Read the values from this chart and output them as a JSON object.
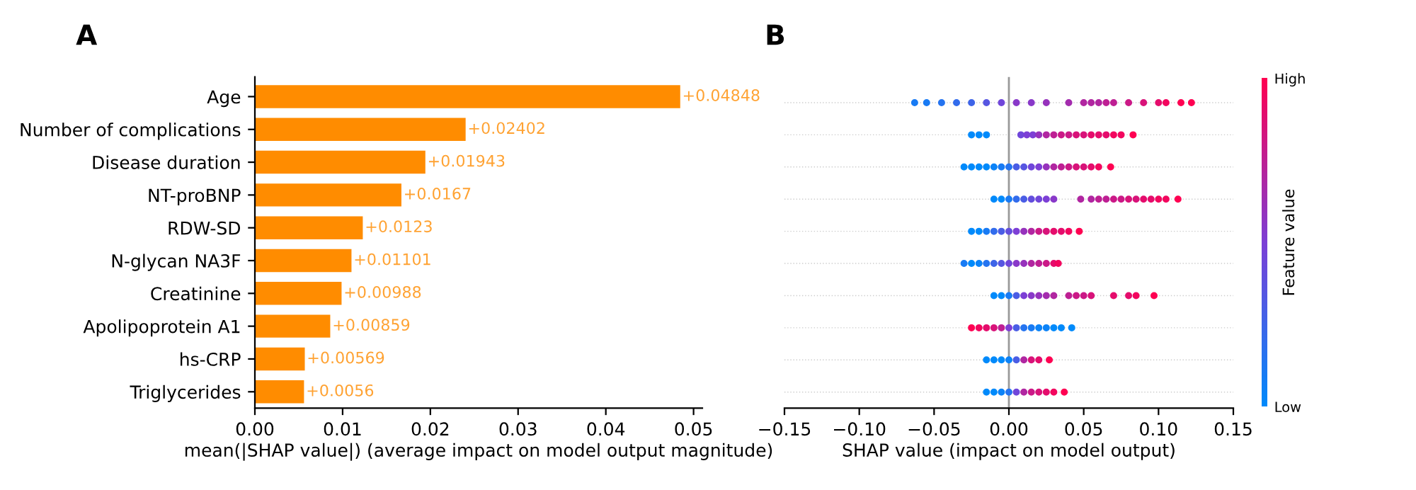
{
  "chart_data": [
    {
      "type": "bar",
      "title": "A",
      "orientation": "horizontal",
      "xlabel": "mean(|SHAP value|) (average impact on model output magnitude)",
      "categories": [
        "Age",
        "Number of complications",
        "Disease duration",
        "NT-proBNP",
        "RDW-SD",
        "N-glycan NA3F",
        "Creatinine",
        "Apolipoprotein A1",
        "hs-CRP",
        "Triglycerides"
      ],
      "values": [
        0.04848,
        0.02402,
        0.01943,
        0.0167,
        0.0123,
        0.01101,
        0.00988,
        0.00859,
        0.00569,
        0.0056
      ],
      "value_labels": [
        "+0.04848",
        "+0.02402",
        "+0.01943",
        "+0.0167",
        "+0.0123",
        "+0.01101",
        "+0.00988",
        "+0.00859",
        "+0.00569",
        "+0.0056"
      ],
      "color": "#ff8c00",
      "xlim": [
        0,
        0.051
      ],
      "xticks": [
        {
          "value": 0,
          "label": "0.00"
        },
        {
          "value": 0.01,
          "label": "0.01"
        },
        {
          "value": 0.02,
          "label": "0.02"
        },
        {
          "value": 0.03,
          "label": "0.03"
        },
        {
          "value": 0.04,
          "label": "0.04"
        },
        {
          "value": 0.05,
          "label": "0.05"
        }
      ],
      "grid": false,
      "legend": false
    },
    {
      "type": "scatter",
      "title": "B",
      "orientation": "horizontal",
      "xlabel": "SHAP value (impact on model output)",
      "clabel": "Feature value",
      "categories": [
        null,
        null,
        null,
        null,
        null,
        null,
        null,
        null,
        null,
        null
      ],
      "xlim": [
        -0.15,
        0.15
      ],
      "xticks": [
        {
          "value": -0.15,
          "label": "−0.15"
        },
        {
          "value": -0.1,
          "label": "−0.10"
        },
        {
          "value": -0.05,
          "label": "−0.05"
        },
        {
          "value": 0,
          "label": "0.00"
        },
        {
          "value": 0.05,
          "label": "0.05"
        },
        {
          "value": 0.1,
          "label": "0.10"
        },
        {
          "value": 0.15,
          "label": "0.15"
        }
      ],
      "clim": [
        0,
        1
      ],
      "cticks": [
        {
          "value": 0,
          "label": "Low"
        },
        {
          "value": 1,
          "label": "High"
        }
      ],
      "grid": "y",
      "legend": false,
      "ref_lines": [
        {
          "axis": "x",
          "value": 0,
          "label": null,
          "color": "#999999"
        }
      ],
      "series": [
        {
          "values": [
            -0.063,
            -0.025,
            -0.03,
            -0.01,
            -0.025,
            -0.03,
            -0.01,
            -0.025,
            -0.015,
            -0.015
          ],
          "cvalues": [
            0.1,
            0,
            0,
            0,
            0,
            0.1,
            0,
            1,
            0,
            0
          ],
          "colors": [
            "#197bf4",
            "#008afb",
            "#008afb",
            "#008afb",
            "#008afb",
            "#197bf4",
            "#008afb",
            "#ff0052",
            "#008afb",
            "#008afb"
          ]
        },
        {
          "values": [
            -0.055,
            -0.02,
            -0.025,
            -0.005,
            -0.02,
            -0.025,
            -0.005,
            -0.02,
            -0.01,
            -0.01
          ],
          "cvalues": [
            0.1,
            0,
            0,
            0,
            0,
            0,
            0,
            0.95,
            0,
            0
          ],
          "colors": [
            "#197bf4",
            "#008afb",
            "#008afb",
            "#008afb",
            "#008afb",
            "#008afb",
            "#008afb",
            "#f2065f",
            "#008afb",
            "#008afb"
          ]
        },
        {
          "values": [
            -0.045,
            -0.015,
            -0.02,
            0,
            -0.015,
            -0.02,
            0,
            -0.015,
            -0.005,
            -0.005
          ],
          "cvalues": [
            0.15,
            0,
            0,
            0.1,
            0.1,
            0.05,
            0.1,
            0.9,
            0,
            0.05
          ],
          "colors": [
            "#2574f0",
            "#008afb",
            "#008afb",
            "#197bf4",
            "#197bf4",
            "#0c83f7",
            "#197bf4",
            "#e50d6c",
            "#008afb",
            "#0c83f7"
          ]
        },
        {
          "values": [
            -0.035,
            0.008,
            -0.015,
            0.005,
            -0.01,
            -0.015,
            0.005,
            -0.01,
            0,
            0
          ],
          "cvalues": [
            0.2,
            0.45,
            0,
            0.2,
            0.2,
            0.15,
            0.3,
            0.85,
            0.05,
            0.15
          ],
          "colors": [
            "#326cec",
            "#7047da",
            "#008afb",
            "#326cec",
            "#326cec",
            "#2574f0",
            "#4a5de5",
            "#d8137a",
            "#0c83f7",
            "#2574f0"
          ]
        },
        {
          "values": [
            -0.025,
            0.012,
            -0.01,
            0.01,
            -0.005,
            -0.01,
            0.01,
            -0.005,
            0.005,
            0.005
          ],
          "cvalues": [
            0.25,
            0.5,
            0.05,
            0.3,
            0.3,
            0.25,
            0.5,
            0.75,
            0.3,
            0.45
          ],
          "colors": [
            "#3e64e8",
            "#7c3fd6",
            "#0c83f7",
            "#4a5de5",
            "#4a5de5",
            "#3e64e8",
            "#7c3fd6",
            "#be2094",
            "#4a5de5",
            "#7047da"
          ]
        },
        {
          "values": [
            -0.015,
            0.016,
            -0.005,
            0.015,
            0,
            -0.005,
            0.015,
            0,
            0.01,
            0.01
          ],
          "cvalues": [
            0.35,
            0.5,
            0.1,
            0.4,
            0.4,
            0.35,
            0.55,
            0.5,
            0.7,
            0.7
          ],
          "colors": [
            "#5756e1",
            "#7c3fd6",
            "#197bf4",
            "#634edd",
            "#634edd",
            "#5756e1",
            "#8939c9",
            "#7c3fd6",
            "#b026a1",
            "#b026a1"
          ]
        },
        {
          "values": [
            -0.005,
            0.02,
            0,
            0.02,
            0.005,
            0,
            0.02,
            0.005,
            0.015,
            0.015
          ],
          "cvalues": [
            0.45,
            0.6,
            0.15,
            0.45,
            0.5,
            0.45,
            0.6,
            0.3,
            0.85,
            0.8
          ],
          "colors": [
            "#7047da",
            "#9632bc",
            "#2574f0",
            "#7047da",
            "#7c3fd6",
            "#7047da",
            "#9632bc",
            "#4a5de5",
            "#d8137a",
            "#cb1987"
          ]
        },
        {
          "values": [
            0.005,
            0.025,
            0.005,
            0.025,
            0.01,
            0.005,
            0.025,
            0.01,
            0.02,
            0.02
          ],
          "cvalues": [
            0.55,
            0.7,
            0.3,
            0.5,
            0.6,
            0.55,
            0.65,
            0.15,
            0.9,
            0.85
          ],
          "colors": [
            "#8939c9",
            "#b026a1",
            "#4a5de5",
            "#7c3fd6",
            "#9632bc",
            "#8939c9",
            "#a32cae",
            "#2574f0",
            "#e50d6c",
            "#d8137a"
          ]
        },
        {
          "values": [
            0.015,
            0.03,
            0.01,
            0.03,
            0.015,
            0.01,
            0.03,
            0.015,
            0.027,
            0.025
          ],
          "cvalues": [
            0.55,
            0.75,
            0.35,
            0.55,
            0.7,
            0.6,
            0.7,
            0.1,
            1,
            0.9
          ],
          "colors": [
            "#8939c9",
            "#be2094",
            "#5756e1",
            "#8939c9",
            "#b026a1",
            "#9632bc",
            "#b026a1",
            "#197bf4",
            "#ff0052",
            "#e50d6c"
          ]
        },
        {
          "values": [
            0.025,
            0.035,
            0.015,
            0.048,
            0.02,
            0.015,
            0.04,
            0.02,
            null,
            0.03
          ],
          "cvalues": [
            0.6,
            0.8,
            0.45,
            0.7,
            0.8,
            0.7,
            0.75,
            0.05,
            null,
            0.95
          ],
          "colors": [
            "#9632bc",
            "#cb1987",
            "#7047da",
            "#b026a1",
            "#cb1987",
            "#b026a1",
            "#be2094",
            "#0c83f7",
            null,
            "#f2065f"
          ]
        },
        {
          "values": [
            0.04,
            0.04,
            null,
            0.055,
            0.025,
            0.02,
            0.045,
            0.025,
            null,
            0.037
          ],
          "cvalues": [
            0.65,
            0.8,
            null,
            0.7,
            0.85,
            0.75,
            0.8,
            0.05,
            null,
            1
          ],
          "colors": [
            "#a32cae",
            "#cb1987",
            null,
            "#b026a1",
            "#d8137a",
            "#be2094",
            "#cb1987",
            "#0c83f7",
            null,
            "#ff0052"
          ]
        },
        {
          "values": [
            0.05,
            0.045,
            0.02,
            0.06,
            0.03,
            0.025,
            0.05,
            0.03,
            null,
            null
          ],
          "cvalues": [
            0.7,
            0.85,
            0.5,
            0.75,
            0.9,
            0.8,
            0.8,
            0,
            null,
            null
          ],
          "colors": [
            "#b026a1",
            "#d8137a",
            "#7c3fd6",
            "#be2094",
            "#e50d6c",
            "#cb1987",
            "#cb1987",
            "#008afb",
            null,
            null
          ]
        },
        {
          "values": [
            0.055,
            0.05,
            0.025,
            0.065,
            0.035,
            0.03,
            0.055,
            0.035,
            null,
            null
          ],
          "cvalues": [
            0.7,
            0.85,
            0.6,
            0.75,
            0.9,
            0.9,
            0.85,
            0,
            null,
            null
          ],
          "colors": [
            "#b026a1",
            "#d8137a",
            "#9632bc",
            "#be2094",
            "#e50d6c",
            "#e50d6c",
            "#d8137a",
            "#008afb",
            null,
            null
          ]
        },
        {
          "values": [
            0.06,
            0.055,
            0.03,
            0.07,
            0.04,
            0.033,
            0.07,
            0.042,
            null,
            null
          ],
          "cvalues": [
            0.7,
            0.9,
            0.7,
            0.8,
            0.95,
            0.95,
            0.9,
            0,
            null,
            null
          ],
          "colors": [
            "#b026a1",
            "#e50d6c",
            "#b026a1",
            "#cb1987",
            "#f2065f",
            "#f2065f",
            "#e50d6c",
            "#008afb",
            null,
            null
          ]
        },
        {
          "values": [
            0.065,
            0.06,
            0.035,
            0.075,
            0.047,
            null,
            0.08,
            null,
            null,
            null
          ],
          "cvalues": [
            0.75,
            0.9,
            0.75,
            0.8,
            1,
            null,
            0.9,
            null,
            null,
            null
          ],
          "colors": [
            "#be2094",
            "#e50d6c",
            "#be2094",
            "#cb1987",
            "#ff0052",
            null,
            "#e50d6c",
            null,
            null,
            null
          ]
        },
        {
          "values": [
            0.07,
            0.065,
            0.04,
            0.08,
            null,
            null,
            0.085,
            null,
            null,
            null
          ],
          "cvalues": [
            0.75,
            0.9,
            0.8,
            0.85,
            null,
            null,
            0.95,
            null,
            null,
            null
          ],
          "colors": [
            "#be2094",
            "#e50d6c",
            "#cb1987",
            "#d8137a",
            null,
            null,
            "#f2065f",
            null,
            null,
            null
          ]
        },
        {
          "values": [
            0.08,
            0.07,
            0.045,
            0.085,
            null,
            null,
            0.097,
            null,
            null,
            null
          ],
          "cvalues": [
            0.8,
            0.95,
            0.85,
            0.85,
            null,
            null,
            1,
            null,
            null,
            null
          ],
          "colors": [
            "#cb1987",
            "#f2065f",
            "#d8137a",
            "#d8137a",
            null,
            null,
            "#ff0052",
            null,
            null,
            null
          ]
        },
        {
          "values": [
            0.09,
            0.075,
            0.05,
            0.09,
            null,
            null,
            null,
            null,
            null,
            null
          ],
          "cvalues": [
            0.85,
            0.95,
            0.85,
            0.9,
            null,
            null,
            null,
            null,
            null,
            null
          ],
          "colors": [
            "#d8137a",
            "#f2065f",
            "#d8137a",
            "#e50d6c",
            null,
            null,
            null,
            null,
            null,
            null
          ]
        },
        {
          "values": [
            0.1,
            0.083,
            0.055,
            0.095,
            null,
            null,
            null,
            null,
            null,
            null
          ],
          "cvalues": [
            0.9,
            1,
            0.9,
            0.9,
            null,
            null,
            null,
            null,
            null,
            null
          ],
          "colors": [
            "#e50d6c",
            "#ff0052",
            "#e50d6c",
            "#e50d6c",
            null,
            null,
            null,
            null,
            null,
            null
          ]
        },
        {
          "values": [
            0.105,
            null,
            0.06,
            0.1,
            null,
            null,
            null,
            null,
            null,
            null
          ],
          "cvalues": [
            0.95,
            null,
            0.95,
            0.95,
            null,
            null,
            null,
            null,
            null,
            null
          ],
          "colors": [
            "#f2065f",
            null,
            "#f2065f",
            "#f2065f",
            null,
            null,
            null,
            null,
            null,
            null
          ]
        },
        {
          "values": [
            0.115,
            null,
            0.068,
            0.105,
            null,
            null,
            null,
            null,
            null,
            null
          ],
          "cvalues": [
            1,
            null,
            1,
            0.95,
            null,
            null,
            null,
            null,
            null,
            null
          ],
          "colors": [
            "#ff0052",
            null,
            "#ff0052",
            "#f2065f",
            null,
            null,
            null,
            null,
            null,
            null
          ]
        },
        {
          "values": [
            0.122,
            null,
            null,
            0.113,
            null,
            null,
            null,
            null,
            null,
            null
          ],
          "cvalues": [
            1,
            null,
            null,
            1,
            null,
            null,
            null,
            null,
            null,
            null
          ],
          "colors": [
            "#ff0052",
            null,
            null,
            "#ff0052",
            null,
            null,
            null,
            null,
            null,
            null
          ]
        }
      ]
    }
  ]
}
